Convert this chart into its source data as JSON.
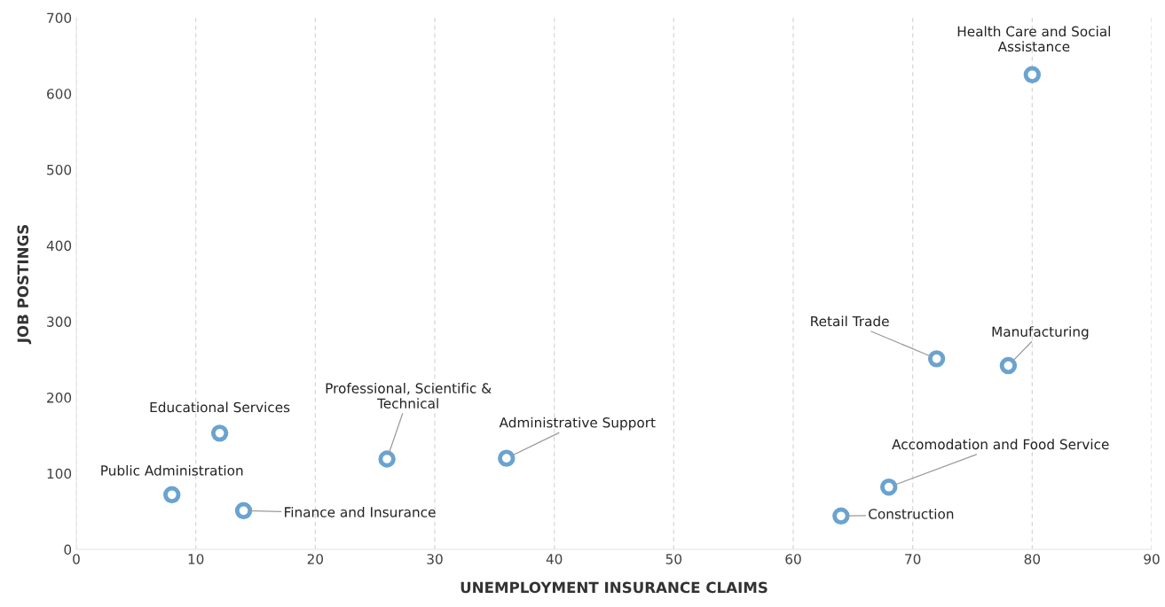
{
  "chart_data": {
    "type": "scatter",
    "xlabel": "UNEMPLOYMENT INSURANCE CLAIMS",
    "ylabel": "JOB POSTINGS",
    "series": [
      {
        "color": "#6aa3d0",
        "x": [
          8,
          12,
          14,
          26,
          36,
          64,
          68,
          72,
          78,
          80
        ],
        "values": [
          72,
          153,
          51,
          119,
          120,
          44,
          82,
          251,
          242,
          625
        ]
      }
    ],
    "annotations": [
      {
        "text": "Public Administration",
        "x": 8,
        "y": 72
      },
      {
        "text": "Educational Services",
        "x": 12,
        "y": 153
      },
      {
        "text": "Finance and Insurance",
        "x": 14,
        "y": 51
      },
      {
        "text": "Professional, Scientific &\nTechnical",
        "x": 26,
        "y": 119
      },
      {
        "text": "Administrative Support",
        "x": 36,
        "y": 120
      },
      {
        "text": "Construction",
        "x": 64,
        "y": 44
      },
      {
        "text": "Accomodation and Food Service",
        "x": 68,
        "y": 82
      },
      {
        "text": "Retail Trade",
        "x": 72,
        "y": 251
      },
      {
        "text": "Manufacturing",
        "x": 78,
        "y": 242
      },
      {
        "text": "Health Care and Social\nAssistance",
        "x": 80,
        "y": 625
      }
    ],
    "xlim": [
      0,
      90
    ],
    "xticks": [
      0,
      10,
      20,
      30,
      40,
      50,
      60,
      70,
      80,
      90
    ],
    "ylim": [
      0,
      700
    ],
    "yticks": [
      0,
      100,
      200,
      300,
      400,
      500,
      600,
      700
    ],
    "grid": "x",
    "marker": "circle"
  }
}
